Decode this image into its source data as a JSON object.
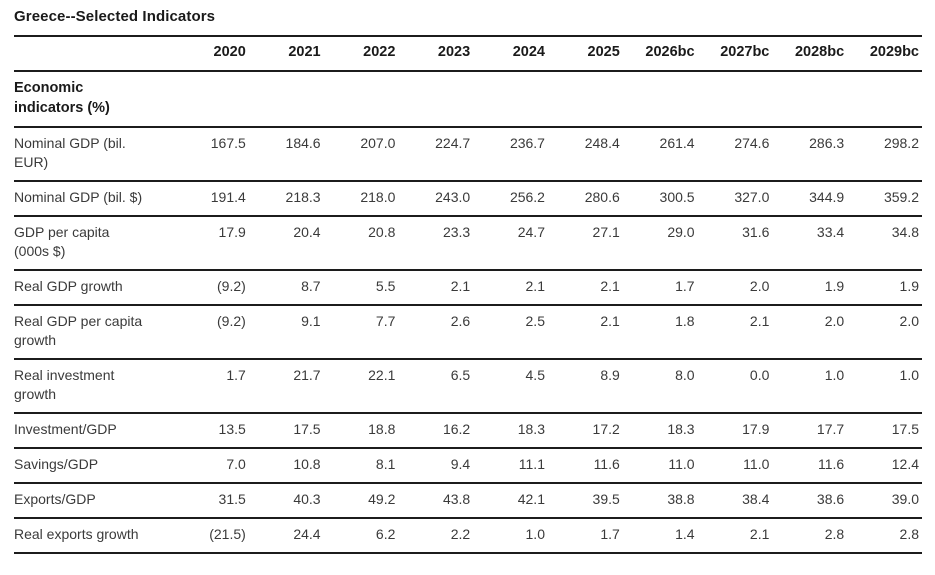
{
  "title": "Greece--Selected Indicators",
  "table": {
    "section_header": "Economic indicators (%)",
    "year_headers": [
      "2020",
      "2021",
      "2022",
      "2023",
      "2024",
      "2025",
      "2026bc",
      "2027bc",
      "2028bc",
      "2029bc"
    ],
    "rows": [
      {
        "label": "Nominal GDP (bil. EUR)",
        "values": [
          "167.5",
          "184.6",
          "207.0",
          "224.7",
          "236.7",
          "248.4",
          "261.4",
          "274.6",
          "286.3",
          "298.2"
        ]
      },
      {
        "label": "Nominal GDP (bil. $)",
        "values": [
          "191.4",
          "218.3",
          "218.0",
          "243.0",
          "256.2",
          "280.6",
          "300.5",
          "327.0",
          "344.9",
          "359.2"
        ]
      },
      {
        "label": "GDP per capita (000s $)",
        "values": [
          "17.9",
          "20.4",
          "20.8",
          "23.3",
          "24.7",
          "27.1",
          "29.0",
          "31.6",
          "33.4",
          "34.8"
        ]
      },
      {
        "label": "Real GDP growth",
        "values": [
          "(9.2)",
          "8.7",
          "5.5",
          "2.1",
          "2.1",
          "2.1",
          "1.7",
          "2.0",
          "1.9",
          "1.9"
        ]
      },
      {
        "label": "Real GDP per capita growth",
        "values": [
          "(9.2)",
          "9.1",
          "7.7",
          "2.6",
          "2.5",
          "2.1",
          "1.8",
          "2.1",
          "2.0",
          "2.0"
        ]
      },
      {
        "label": "Real investment growth",
        "values": [
          "1.7",
          "21.7",
          "22.1",
          "6.5",
          "4.5",
          "8.9",
          "8.0",
          "0.0",
          "1.0",
          "1.0"
        ]
      },
      {
        "label": "Investment/GDP",
        "values": [
          "13.5",
          "17.5",
          "18.8",
          "16.2",
          "18.3",
          "17.2",
          "18.3",
          "17.9",
          "17.7",
          "17.5"
        ]
      },
      {
        "label": "Savings/GDP",
        "values": [
          "7.0",
          "10.8",
          "8.1",
          "9.4",
          "11.1",
          "11.6",
          "11.0",
          "11.0",
          "11.6",
          "12.4"
        ]
      },
      {
        "label": "Exports/GDP",
        "values": [
          "31.5",
          "40.3",
          "49.2",
          "43.8",
          "42.1",
          "39.5",
          "38.8",
          "38.4",
          "38.6",
          "39.0"
        ]
      },
      {
        "label": "Real exports growth",
        "values": [
          "(21.5)",
          "24.4",
          "6.2",
          "2.2",
          "1.0",
          "1.7",
          "1.4",
          "2.1",
          "2.8",
          "2.8"
        ]
      }
    ]
  },
  "colors": {
    "text": "#3a3a3a",
    "heading": "#1a1a1a",
    "rule": "#1c1c1c",
    "background": "#ffffff"
  }
}
